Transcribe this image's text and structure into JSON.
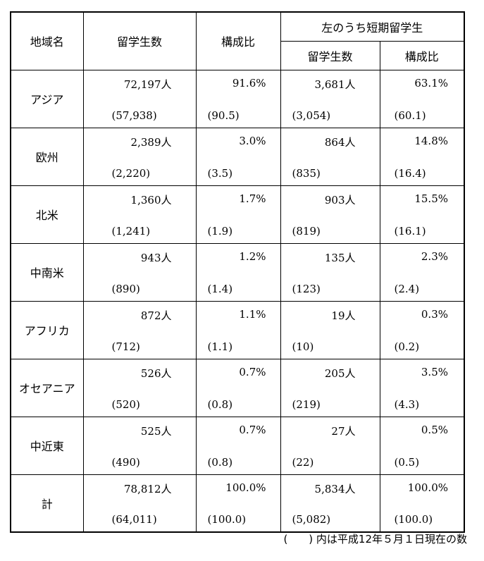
{
  "header": {
    "region": "地域名",
    "students": "留学生数",
    "share": "構成比",
    "short_term_group": "左のうち短期留学生",
    "short_students": "留学生数",
    "short_share": "構成比"
  },
  "rows": [
    {
      "region": "アジア",
      "count": "72,197人",
      "count_prev": "(57,938)",
      "share": "91.6%",
      "share_prev": "(90.5)",
      "s_count": "3,681人",
      "s_count_prev": "(3,054)",
      "s_share": "63.1%",
      "s_share_prev": "(60.1)"
    },
    {
      "region": "欧州",
      "count": "2,389人",
      "count_prev": "(2,220)",
      "share": "3.0%",
      "share_prev": "(3.5)",
      "s_count": "864人",
      "s_count_prev": "(835)",
      "s_share": "14.8%",
      "s_share_prev": "(16.4)"
    },
    {
      "region": "北米",
      "count": "1,360人",
      "count_prev": "(1,241)",
      "share": "1.7%",
      "share_prev": "(1.9)",
      "s_count": "903人",
      "s_count_prev": "(819)",
      "s_share": "15.5%",
      "s_share_prev": "(16.1)"
    },
    {
      "region": "中南米",
      "count": "943人",
      "count_prev": "(890)",
      "share": "1.2%",
      "share_prev": "(1.4)",
      "s_count": "135人",
      "s_count_prev": "(123)",
      "s_share": "2.3%",
      "s_share_prev": "(2.4)"
    },
    {
      "region": "アフリカ",
      "count": "872人",
      "count_prev": "(712)",
      "share": "1.1%",
      "share_prev": "(1.1)",
      "s_count": "19人",
      "s_count_prev": "(10)",
      "s_share": "0.3%",
      "s_share_prev": "(0.2)"
    },
    {
      "region": "オセアニア",
      "count": "526人",
      "count_prev": "(520)",
      "share": "0.7%",
      "share_prev": "(0.8)",
      "s_count": "205人",
      "s_count_prev": "(219)",
      "s_share": "3.5%",
      "s_share_prev": "(4.3)"
    },
    {
      "region": "中近東",
      "count": "525人",
      "count_prev": "(490)",
      "share": "0.7%",
      "share_prev": "(0.8)",
      "s_count": "27人",
      "s_count_prev": "(22)",
      "s_share": "0.5%",
      "s_share_prev": "(0.5)"
    },
    {
      "region": "計",
      "count": "78,812人",
      "count_prev": "(64,011)",
      "share": "100.0%",
      "share_prev": "(100.0)",
      "s_count": "5,834人",
      "s_count_prev": "(5,082)",
      "s_share": "100.0%",
      "s_share_prev": "(100.0)"
    }
  ],
  "note": "(　　) 内は平成12年５月１日現在の数"
}
